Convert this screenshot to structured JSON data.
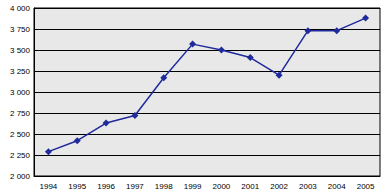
{
  "chart_data": {
    "type": "line",
    "categories": [
      "1994",
      "1995",
      "1996",
      "1997",
      "1998",
      "1999",
      "2000",
      "2001",
      "2002",
      "2003",
      "2004",
      "2005"
    ],
    "values": [
      2290,
      2420,
      2630,
      2720,
      3170,
      3570,
      3500,
      3410,
      3200,
      3730,
      3730,
      3880
    ],
    "color": "#1f2a9c",
    "marker": "diamond",
    "ylim": [
      2000,
      4000
    ],
    "yticks": [
      {
        "value": 2000,
        "label": "2 000"
      },
      {
        "value": 2250,
        "label": "2 250"
      },
      {
        "value": 2500,
        "label": "2 500"
      },
      {
        "value": 2750,
        "label": "2 750"
      },
      {
        "value": 3000,
        "label": "3 000"
      },
      {
        "value": 3250,
        "label": "3 250"
      },
      {
        "value": 3500,
        "label": "3 500"
      },
      {
        "value": 3750,
        "label": "3 750"
      },
      {
        "value": 4000,
        "label": "4 000"
      }
    ],
    "grid": true
  }
}
